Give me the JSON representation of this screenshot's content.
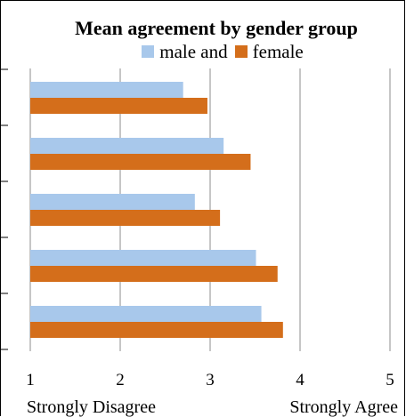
{
  "chart_data": {
    "type": "bar",
    "orientation": "horizontal",
    "title": "Mean agreement by gender group",
    "categories": [
      "",
      "",
      "",
      "",
      ""
    ],
    "series": [
      {
        "name": "male and",
        "color": "#a8c8eb",
        "values": [
          2.7,
          3.15,
          2.83,
          3.51,
          3.57
        ]
      },
      {
        "name": "female",
        "color": "#d46e1b",
        "values": [
          2.97,
          3.45,
          3.11,
          3.75,
          3.81
        ]
      }
    ],
    "xlim": [
      1,
      5
    ],
    "xticks": [
      1,
      2,
      3,
      4,
      5
    ],
    "xtick_labels": [
      "1",
      "2",
      "3",
      "4",
      "5"
    ],
    "axis_end_labels": {
      "left": "Strongly Disagree",
      "right": "Strongly Agree"
    },
    "grid": true,
    "legend_position": "top"
  }
}
